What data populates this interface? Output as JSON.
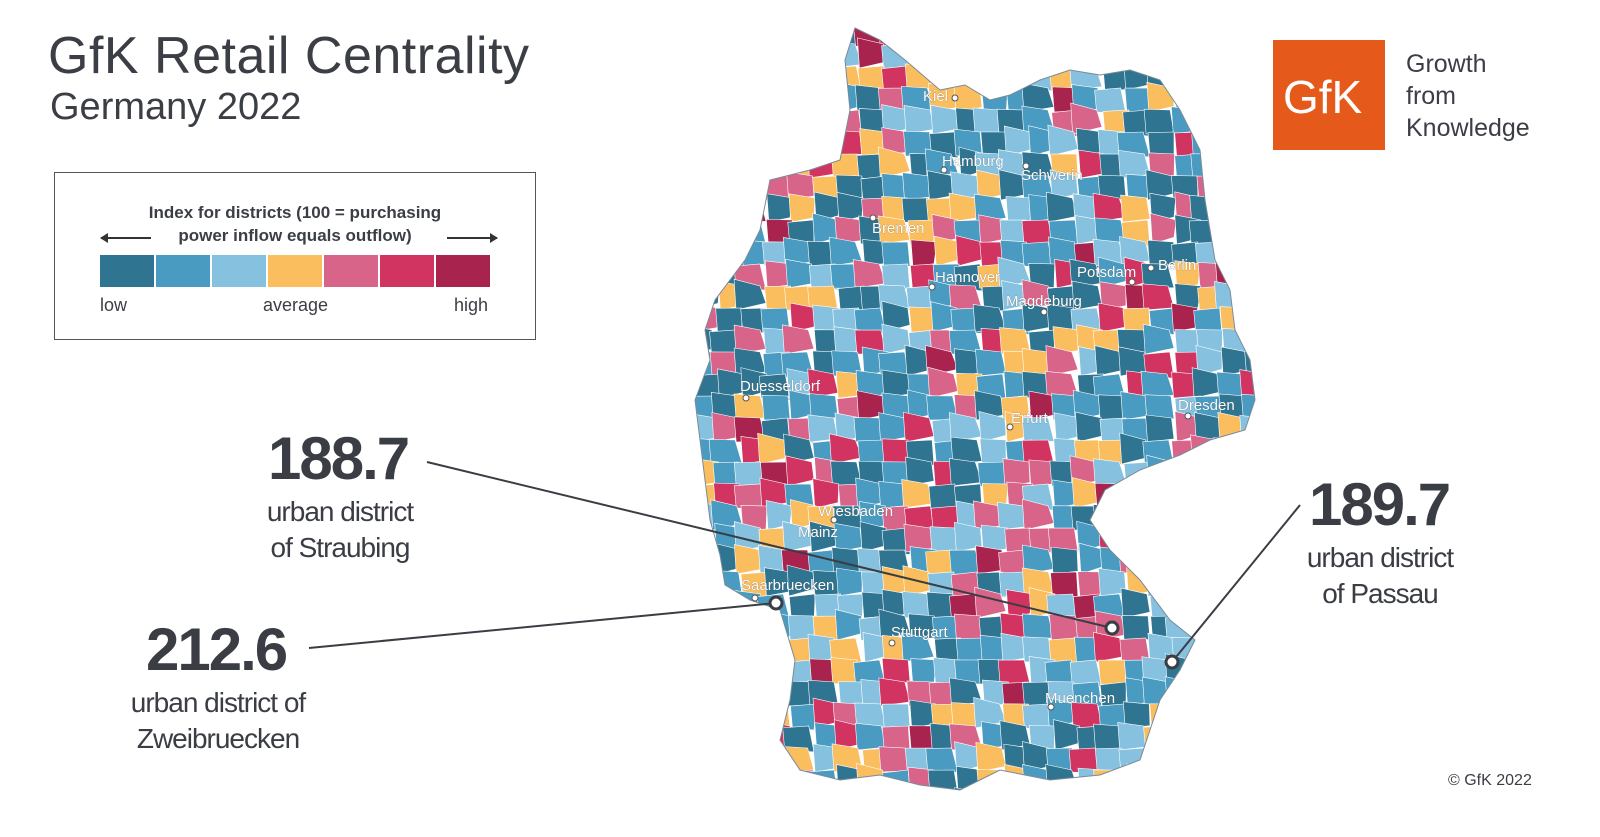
{
  "header": {
    "title": "GfK Retail Centrality",
    "subtitle": "Germany 2022"
  },
  "legend": {
    "title_line1": "Index for districts (100 = purchasing",
    "title_line2": "power inflow equals outflow)",
    "low": "low",
    "average": "average",
    "high": "high",
    "colors": [
      "#2f7490",
      "#4a9bc1",
      "#86c2df",
      "#fbbe5e",
      "#d9648a",
      "#d13460",
      "#a8244e"
    ]
  },
  "logo": {
    "text": "GfK",
    "tagline_lines": [
      "Growth",
      "from",
      "Knowledge"
    ],
    "color": "#e55a1b"
  },
  "callouts": [
    {
      "value": "188.7",
      "label_lines": [
        "urban district",
        "of Straubing"
      ]
    },
    {
      "value": "212.6",
      "label_lines": [
        "urban district of",
        "Zweibruecken"
      ]
    },
    {
      "value": "189.7",
      "label_lines": [
        "urban district",
        "of Passau"
      ]
    }
  ],
  "cities": [
    "Kiel",
    "Hamburg",
    "Schwerin",
    "Bremen",
    "Hannover",
    "Potsdam",
    "Berlin",
    "Magdeburg",
    "Duesseldorf",
    "Dresden",
    "Erfurt",
    "Wiesbaden",
    "Mainz",
    "Saarbruecken",
    "Stuttgart",
    "Muenchen"
  ],
  "copyright": "© GfK 2022"
}
